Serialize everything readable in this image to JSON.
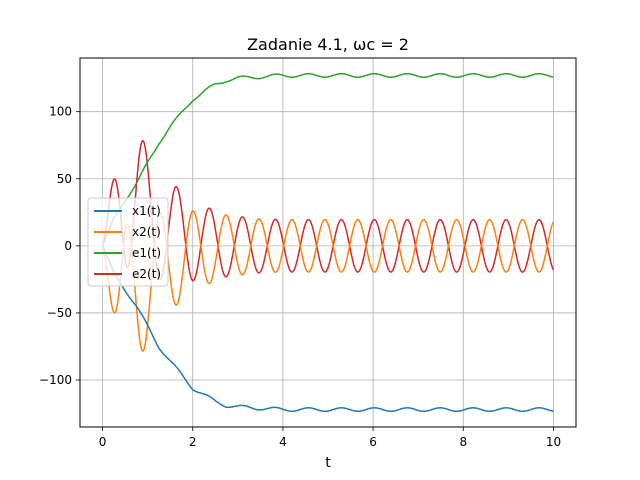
{
  "chart_data": {
    "type": "line",
    "title": "Zadanie 4.1, ωc = 2",
    "xlabel": "t",
    "ylabel": "",
    "xlim": [
      -0.5,
      10.5
    ],
    "ylim": [
      -135,
      140
    ],
    "xticks": [
      0,
      2,
      4,
      6,
      8,
      10
    ],
    "yticks": [
      -100,
      -50,
      0,
      50,
      100
    ],
    "xtick_labels": [
      "0",
      "2",
      "4",
      "6",
      "8",
      "10"
    ],
    "ytick_labels": [
      "−100",
      "−50",
      "0",
      "50",
      "100"
    ],
    "grid": true,
    "legend_position": "center-left",
    "series": [
      {
        "name": "x1(t)",
        "color": "#1f77b4",
        "x": [
          0,
          0.25,
          0.5,
          0.75,
          1.0,
          1.25,
          1.5,
          1.75,
          2.0,
          2.25,
          2.5,
          2.75,
          3.0,
          3.5,
          4.0,
          5.0,
          6.0,
          7.0,
          8.0,
          9.0,
          10.0
        ],
        "values": [
          0,
          -20,
          -33,
          -45,
          -60,
          -75,
          -86,
          -96,
          -106,
          -111,
          -116,
          -119,
          -120,
          -121,
          -122,
          -122,
          -122,
          -122,
          -122,
          -122,
          -122
        ],
        "ripple": 1.3
      },
      {
        "name": "x2(t)",
        "color": "#ff7f0e",
        "x": [
          0,
          0.5,
          1.0,
          1.5,
          2.0,
          2.5,
          3.0,
          3.5,
          4.0,
          5.0,
          6.0,
          7.0,
          8.0,
          9.0,
          10.0
        ],
        "envelope_center": [
          0,
          -47,
          -24,
          -11,
          -4,
          -1,
          0,
          0,
          0,
          0,
          0,
          0,
          0,
          0,
          0
        ],
        "envelope_amplitude": [
          0,
          62,
          47,
          37,
          30,
          25,
          22,
          20,
          19.5,
          19.5,
          19.5,
          19.5,
          19.5,
          19.5,
          19.5
        ],
        "oscillation": "sin"
      },
      {
        "name": "e1(t)",
        "color": "#2ca02c",
        "x": [
          0,
          0.25,
          0.5,
          0.75,
          1.0,
          1.25,
          1.5,
          1.75,
          2.0,
          2.25,
          2.5,
          2.75,
          3.0,
          3.5,
          4.0,
          5.0,
          6.0,
          7.0,
          8.0,
          9.0,
          10.0
        ],
        "values": [
          0,
          20,
          33,
          45,
          60,
          75,
          86,
          96,
          106,
          111,
          116,
          119,
          120,
          121,
          122,
          122,
          122,
          122,
          122,
          122,
          122
        ],
        "ripple": 1.3,
        "offset": 5
      },
      {
        "name": "e2(t)",
        "color": "#d62728",
        "x": [
          0,
          0.5,
          1.0,
          1.5,
          2.0,
          2.5,
          3.0,
          3.5,
          4.0,
          5.0,
          6.0,
          7.0,
          8.0,
          9.0,
          10.0
        ],
        "envelope_center": [
          0,
          47,
          24,
          11,
          4,
          1,
          0,
          0,
          0,
          0,
          0,
          0,
          0,
          0,
          0
        ],
        "envelope_amplitude": [
          0,
          62,
          47,
          37,
          30,
          25,
          22,
          20,
          19.5,
          19.5,
          19.5,
          19.5,
          19.5,
          19.5,
          19.5
        ],
        "oscillation": "sin"
      }
    ]
  }
}
